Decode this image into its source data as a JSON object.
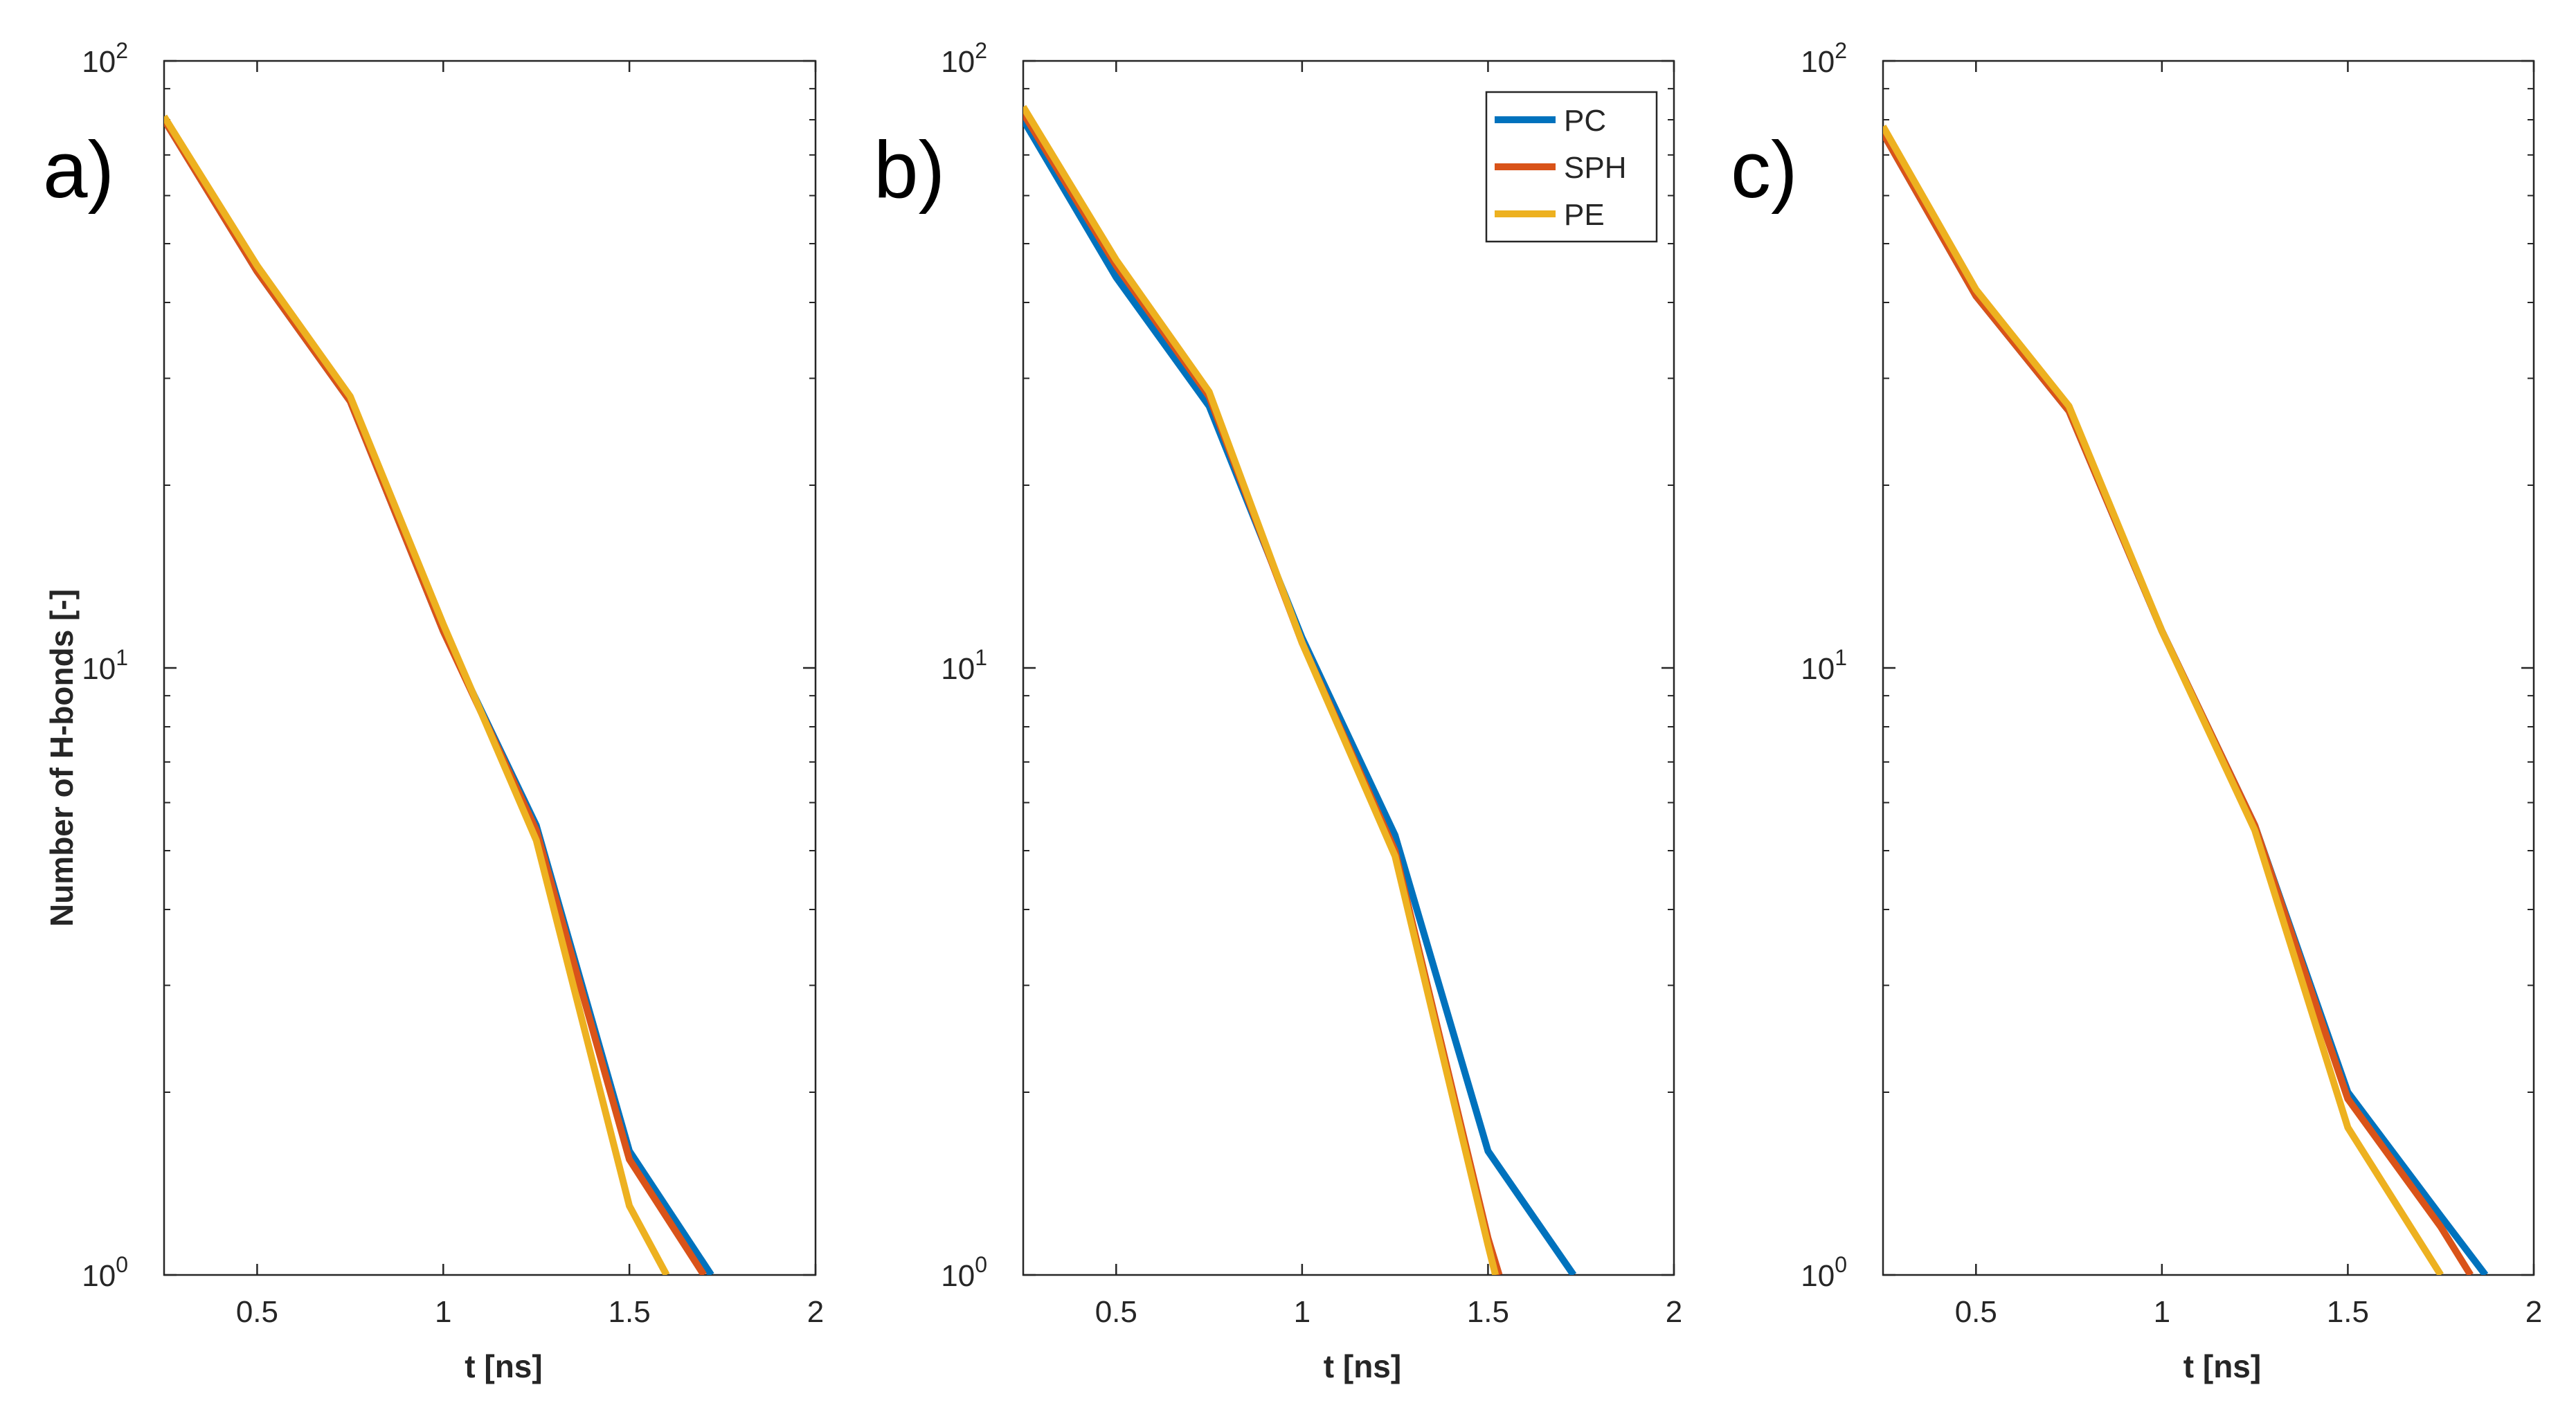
{
  "figure": {
    "ylabel": "Number of H-bonds [-]",
    "xlabel": "t [ns]"
  },
  "colors": {
    "PC": "#0072BD",
    "SPH": "#D95319",
    "PE": "#EDB120",
    "axis": "#262626",
    "background": "#ffffff"
  },
  "legend": {
    "entries": [
      "PC",
      "SPH",
      "PE"
    ]
  },
  "chart_data": [
    {
      "type": "line",
      "panel_label": "a)",
      "xscale": "linear",
      "yscale": "log",
      "xlim": [
        0.25,
        2
      ],
      "ylim": [
        1,
        100
      ],
      "xticks": [
        0.5,
        1,
        1.5,
        2
      ],
      "xtick_labels": [
        "0.5",
        "1",
        "1.5",
        "2"
      ],
      "ytick_labels": [
        {
          "base": "10",
          "exp": "0",
          "value": 1
        },
        {
          "base": "10",
          "exp": "1",
          "value": 10
        },
        {
          "base": "10",
          "exp": "2",
          "value": 100
        }
      ],
      "xlabel": "t [ns]",
      "ylabel": "Number of H-bonds [-]",
      "legend": false,
      "series": [
        {
          "name": "PC",
          "x": [
            0.25,
            0.5,
            0.75,
            1.0,
            1.25,
            1.5,
            1.72
          ],
          "y": [
            80,
            45,
            27.5,
            11.5,
            5.5,
            1.6,
            1.0
          ]
        },
        {
          "name": "SPH",
          "x": [
            0.25,
            0.5,
            0.75,
            1.0,
            1.25,
            1.5,
            1.7
          ],
          "y": [
            80,
            45,
            27.5,
            11.5,
            5.4,
            1.55,
            1.0
          ]
        },
        {
          "name": "PE",
          "x": [
            0.25,
            0.5,
            0.75,
            1.0,
            1.25,
            1.5,
            1.6
          ],
          "y": [
            81,
            46,
            28,
            11.8,
            5.2,
            1.3,
            1.0
          ]
        }
      ]
    },
    {
      "type": "line",
      "panel_label": "b)",
      "xscale": "linear",
      "yscale": "log",
      "xlim": [
        0.25,
        2
      ],
      "ylim": [
        1,
        100
      ],
      "xticks": [
        0.5,
        1,
        1.5,
        2
      ],
      "xtick_labels": [
        "0.5",
        "1",
        "1.5",
        "2"
      ],
      "ytick_labels": [
        {
          "base": "10",
          "exp": "0",
          "value": 1
        },
        {
          "base": "10",
          "exp": "1",
          "value": 10
        },
        {
          "base": "10",
          "exp": "2",
          "value": 100
        }
      ],
      "xlabel": "t [ns]",
      "ylabel": "",
      "legend": true,
      "legend_location": "top-right",
      "series": [
        {
          "name": "PC",
          "x": [
            0.25,
            0.5,
            0.75,
            1.0,
            1.25,
            1.5,
            1.73
          ],
          "y": [
            80,
            44,
            27,
            11.2,
            5.3,
            1.6,
            1.0
          ]
        },
        {
          "name": "SPH",
          "x": [
            0.25,
            0.5,
            0.75,
            1.0,
            1.25,
            1.5,
            1.53
          ],
          "y": [
            82,
            46,
            28,
            11.0,
            5.0,
            1.15,
            1.0
          ]
        },
        {
          "name": "PE",
          "x": [
            0.25,
            0.5,
            0.75,
            1.0,
            1.25,
            1.5,
            1.52
          ],
          "y": [
            84,
            47,
            28.5,
            11.0,
            4.9,
            1.12,
            1.0
          ]
        }
      ]
    },
    {
      "type": "line",
      "panel_label": "c)",
      "xscale": "linear",
      "yscale": "log",
      "xlim": [
        0.25,
        2
      ],
      "ylim": [
        1,
        100
      ],
      "xticks": [
        0.5,
        1,
        1.5,
        2
      ],
      "xtick_labels": [
        "0.5",
        "1",
        "1.5",
        "2"
      ],
      "ytick_labels": [
        {
          "base": "10",
          "exp": "0",
          "value": 1
        },
        {
          "base": "10",
          "exp": "1",
          "value": 10
        },
        {
          "base": "10",
          "exp": "2",
          "value": 100
        }
      ],
      "xlabel": "t [ns]",
      "ylabel": "",
      "legend": false,
      "series": [
        {
          "name": "PC",
          "x": [
            0.25,
            0.5,
            0.75,
            1.0,
            1.25,
            1.5,
            1.75,
            1.87
          ],
          "y": [
            76,
            41,
            26.5,
            11.5,
            5.5,
            2.0,
            1.25,
            1.0
          ]
        },
        {
          "name": "SPH",
          "x": [
            0.25,
            0.5,
            0.75,
            1.0,
            1.25,
            1.5,
            1.75,
            1.83
          ],
          "y": [
            76,
            41,
            26.5,
            11.5,
            5.5,
            1.95,
            1.2,
            1.0
          ]
        },
        {
          "name": "PE",
          "x": [
            0.25,
            0.5,
            0.75,
            1.0,
            1.25,
            1.5,
            1.75
          ],
          "y": [
            78,
            42,
            27,
            11.5,
            5.4,
            1.75,
            1.0
          ]
        }
      ]
    }
  ]
}
